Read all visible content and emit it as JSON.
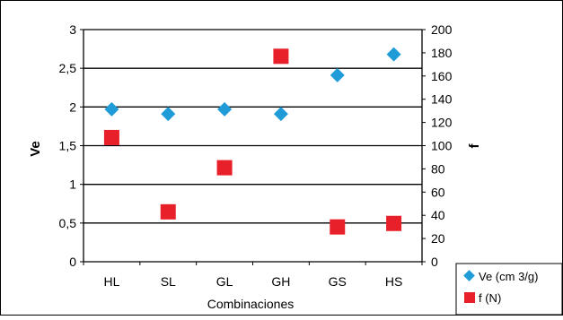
{
  "chart_data": {
    "type": "scatter",
    "categories": [
      "HL",
      "SL",
      "GL",
      "GH",
      "GS",
      "HS"
    ],
    "xlabel": "Combinaciones",
    "y_left": {
      "label": "Ve",
      "range": [
        0,
        3
      ],
      "ticks": [
        "0",
        "0,5",
        "1",
        "1,5",
        "2",
        "2,5",
        "3"
      ],
      "tick_values": [
        0,
        0.5,
        1,
        1.5,
        2,
        2.5,
        3
      ]
    },
    "y_right": {
      "label": "f",
      "range": [
        0,
        200
      ],
      "ticks": [
        "0",
        "20",
        "40",
        "60",
        "80",
        "100",
        "120",
        "140",
        "160",
        "180",
        "200"
      ],
      "tick_values": [
        0,
        20,
        40,
        60,
        80,
        100,
        120,
        140,
        160,
        180,
        200
      ]
    },
    "grid": true,
    "legend_position": "bottom-right",
    "series": [
      {
        "name": "Ve (cm 3/g)",
        "axis": "left",
        "marker": "diamond",
        "color": "#1f9bd7",
        "values": [
          1.97,
          1.91,
          1.97,
          1.91,
          2.41,
          2.68
        ]
      },
      {
        "name": "f (N)",
        "axis": "right",
        "marker": "square",
        "color": "#e8202a",
        "values": [
          107,
          43,
          81,
          177,
          30,
          33
        ]
      }
    ]
  }
}
